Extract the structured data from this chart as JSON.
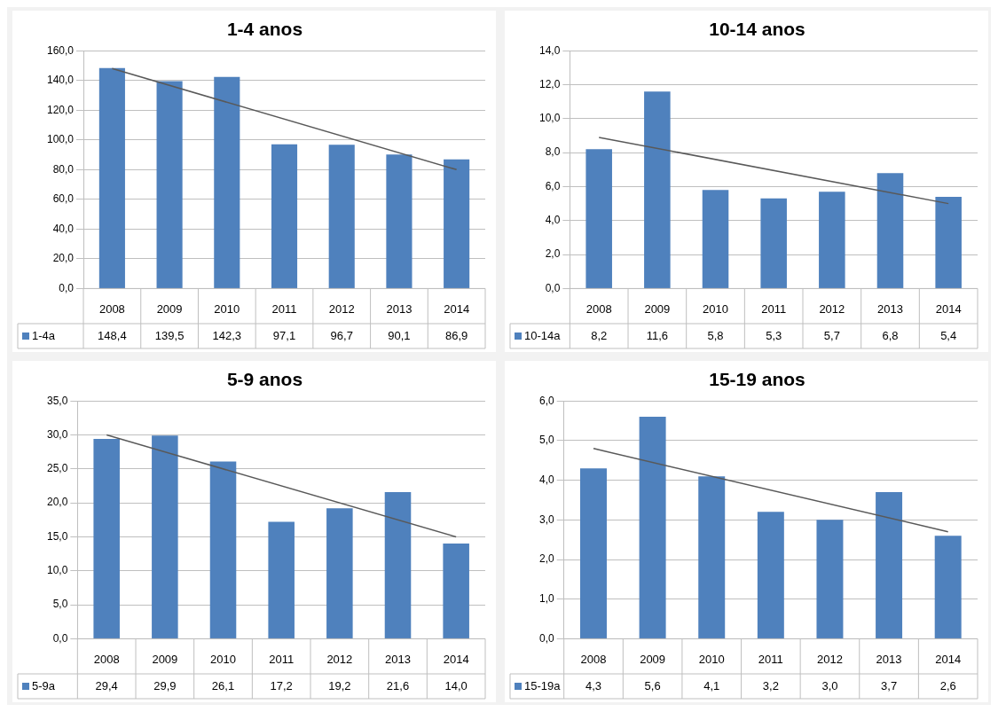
{
  "chart_data": [
    {
      "type": "bar",
      "title": "1-4 anos",
      "categories": [
        "2008",
        "2009",
        "2010",
        "2011",
        "2012",
        "2013",
        "2014"
      ],
      "series": [
        {
          "name": "1-4a",
          "color": "#4f81bd",
          "values": [
            148.4,
            139.5,
            142.3,
            97.1,
            96.7,
            90.1,
            86.9
          ],
          "value_labels": [
            "148,4",
            "139,5",
            "142,3",
            "97,1",
            "96,7",
            "90,1",
            "86,9"
          ]
        },
        {
          "type": "line",
          "color": "#595959",
          "values": [
            148,
            null,
            null,
            null,
            null,
            null,
            80
          ]
        }
      ],
      "ylim": [
        0,
        160
      ],
      "yticks": [
        {
          "value": 0,
          "label": "0,0"
        },
        {
          "value": 20,
          "label": "20,0"
        },
        {
          "value": 40,
          "label": "40,0"
        },
        {
          "value": 60,
          "label": "60,0"
        },
        {
          "value": 80,
          "label": "80,0"
        },
        {
          "value": 100,
          "label": "100,0"
        },
        {
          "value": 120,
          "label": "120,0"
        },
        {
          "value": 140,
          "label": "140,0"
        },
        {
          "value": 160,
          "label": "160,0"
        }
      ],
      "grid": "y",
      "legend": "bottom"
    },
    {
      "type": "bar",
      "title": "10-14 anos",
      "categories": [
        "2008",
        "2009",
        "2010",
        "2011",
        "2012",
        "2013",
        "2014"
      ],
      "series": [
        {
          "name": "10-14a",
          "color": "#4f81bd",
          "values": [
            8.2,
            11.6,
            5.8,
            5.3,
            5.7,
            6.8,
            5.4
          ],
          "value_labels": [
            "8,2",
            "11,6",
            "5,8",
            "5,3",
            "5,7",
            "6,8",
            "5,4"
          ]
        },
        {
          "type": "line",
          "color": "#595959",
          "values": [
            8.9,
            null,
            null,
            null,
            null,
            null,
            5.0
          ]
        }
      ],
      "ylim": [
        0,
        14
      ],
      "yticks": [
        {
          "value": 0,
          "label": "0,0"
        },
        {
          "value": 2,
          "label": "2,0"
        },
        {
          "value": 4,
          "label": "4,0"
        },
        {
          "value": 6,
          "label": "6,0"
        },
        {
          "value": 8,
          "label": "8,0"
        },
        {
          "value": 10,
          "label": "10,0"
        },
        {
          "value": 12,
          "label": "12,0"
        },
        {
          "value": 14,
          "label": "14,0"
        }
      ],
      "grid": "y",
      "legend": "bottom"
    },
    {
      "type": "bar",
      "title": "5-9 anos",
      "categories": [
        "2008",
        "2009",
        "2010",
        "2011",
        "2012",
        "2013",
        "2014"
      ],
      "series": [
        {
          "name": "5-9a",
          "color": "#4f81bd",
          "values": [
            29.4,
            29.9,
            26.1,
            17.2,
            19.2,
            21.6,
            14.0
          ],
          "value_labels": [
            "29,4",
            "29,9",
            "26,1",
            "17,2",
            "19,2",
            "21,6",
            "14,0"
          ]
        },
        {
          "type": "line",
          "color": "#595959",
          "values": [
            30,
            null,
            null,
            null,
            null,
            null,
            15
          ]
        }
      ],
      "ylim": [
        0,
        35
      ],
      "yticks": [
        {
          "value": 0,
          "label": "0,0"
        },
        {
          "value": 5,
          "label": "5,0"
        },
        {
          "value": 10,
          "label": "10,0"
        },
        {
          "value": 15,
          "label": "15,0"
        },
        {
          "value": 20,
          "label": "20,0"
        },
        {
          "value": 25,
          "label": "25,0"
        },
        {
          "value": 30,
          "label": "30,0"
        },
        {
          "value": 35,
          "label": "35,0"
        }
      ],
      "grid": "y",
      "legend": "bottom"
    },
    {
      "type": "bar",
      "title": "15-19 anos",
      "categories": [
        "2008",
        "2009",
        "2010",
        "2011",
        "2012",
        "2013",
        "2014"
      ],
      "series": [
        {
          "name": "15-19a",
          "color": "#4f81bd",
          "values": [
            4.3,
            5.6,
            4.1,
            3.2,
            3.0,
            3.7,
            2.6
          ],
          "value_labels": [
            "4,3",
            "5,6",
            "4,1",
            "3,2",
            "3,0",
            "3,7",
            "2,6"
          ]
        },
        {
          "type": "line",
          "color": "#595959",
          "values": [
            4.8,
            null,
            null,
            null,
            null,
            null,
            2.7
          ]
        }
      ],
      "ylim": [
        0,
        6
      ],
      "yticks": [
        {
          "value": 0,
          "label": "0,0"
        },
        {
          "value": 1,
          "label": "1,0"
        },
        {
          "value": 2,
          "label": "2,0"
        },
        {
          "value": 3,
          "label": "3,0"
        },
        {
          "value": 4,
          "label": "4,0"
        },
        {
          "value": 5,
          "label": "5,0"
        },
        {
          "value": 6,
          "label": "6,0"
        }
      ],
      "grid": "y",
      "legend": "bottom"
    }
  ]
}
